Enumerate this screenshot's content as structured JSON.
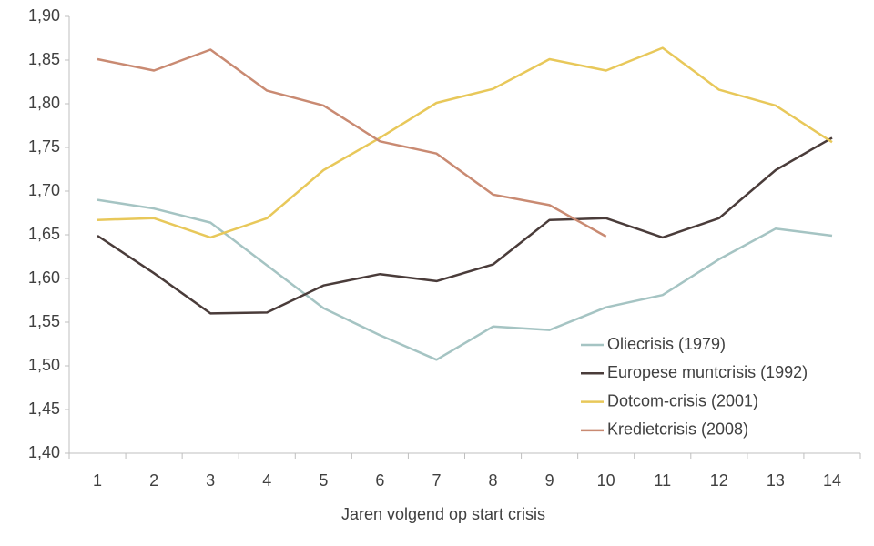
{
  "chart_data": {
    "type": "line",
    "x_label": "Jaren volgend op start crisis",
    "categories": [
      "1",
      "2",
      "3",
      "4",
      "5",
      "6",
      "7",
      "8",
      "9",
      "10",
      "11",
      "12",
      "13",
      "14"
    ],
    "ylim": [
      1.4,
      1.9
    ],
    "yticks": [
      {
        "value": 1.4,
        "label": "1,40"
      },
      {
        "value": 1.45,
        "label": "1,45"
      },
      {
        "value": 1.5,
        "label": "1,50"
      },
      {
        "value": 1.55,
        "label": "1,55"
      },
      {
        "value": 1.6,
        "label": "1,60"
      },
      {
        "value": 1.65,
        "label": "1,65"
      },
      {
        "value": 1.7,
        "label": "1,70"
      },
      {
        "value": 1.75,
        "label": "1,75"
      },
      {
        "value": 1.8,
        "label": "1,80"
      },
      {
        "value": 1.85,
        "label": "1,85"
      },
      {
        "value": 1.9,
        "label": "1,90"
      }
    ],
    "grid": false,
    "legend": "lower right",
    "series": [
      {
        "name": "Oliecrisis (1979)",
        "color": "#a5c4c3",
        "values": [
          1.69,
          1.68,
          1.664,
          1.615,
          1.566,
          1.535,
          1.507,
          1.545,
          1.541,
          1.567,
          1.581,
          1.622,
          1.657,
          1.649
        ]
      },
      {
        "name": "Europese muntcrisis (1992)",
        "color": "#4a3c3a",
        "values": [
          1.649,
          1.606,
          1.56,
          1.561,
          1.592,
          1.605,
          1.597,
          1.616,
          1.667,
          1.669,
          1.647,
          1.669,
          1.724,
          1.761
        ]
      },
      {
        "name": "Dotcom-crisis (2001)",
        "color": "#e8c85a",
        "values": [
          1.667,
          1.669,
          1.647,
          1.669,
          1.724,
          1.761,
          1.801,
          1.817,
          1.851,
          1.838,
          1.864,
          1.816,
          1.798,
          1.756
        ]
      },
      {
        "name": "Kredietcrisis (2008)",
        "color": "#c98a72",
        "values": [
          1.851,
          1.838,
          1.862,
          1.815,
          1.798,
          1.757,
          1.743,
          1.696,
          1.684,
          1.648,
          null,
          null,
          null,
          null
        ]
      }
    ]
  }
}
